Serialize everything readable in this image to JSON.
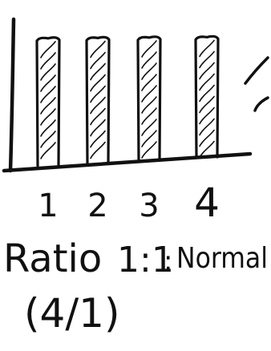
{
  "chart_data": {
    "type": "bar",
    "categories": [
      "1",
      "2",
      "3",
      "4"
    ],
    "values": [
      1,
      1,
      1,
      1
    ],
    "ylim": [
      0,
      1.15
    ],
    "grid": false,
    "legend": "none"
  },
  "caption": {
    "line1_word": "Ratio",
    "line1_ratio": "1:1",
    "line1_separator": ":",
    "line1_label": "Normal",
    "line2": "(4/1)"
  },
  "colors": {
    "ink": "#111111",
    "background": "#ffffff"
  }
}
